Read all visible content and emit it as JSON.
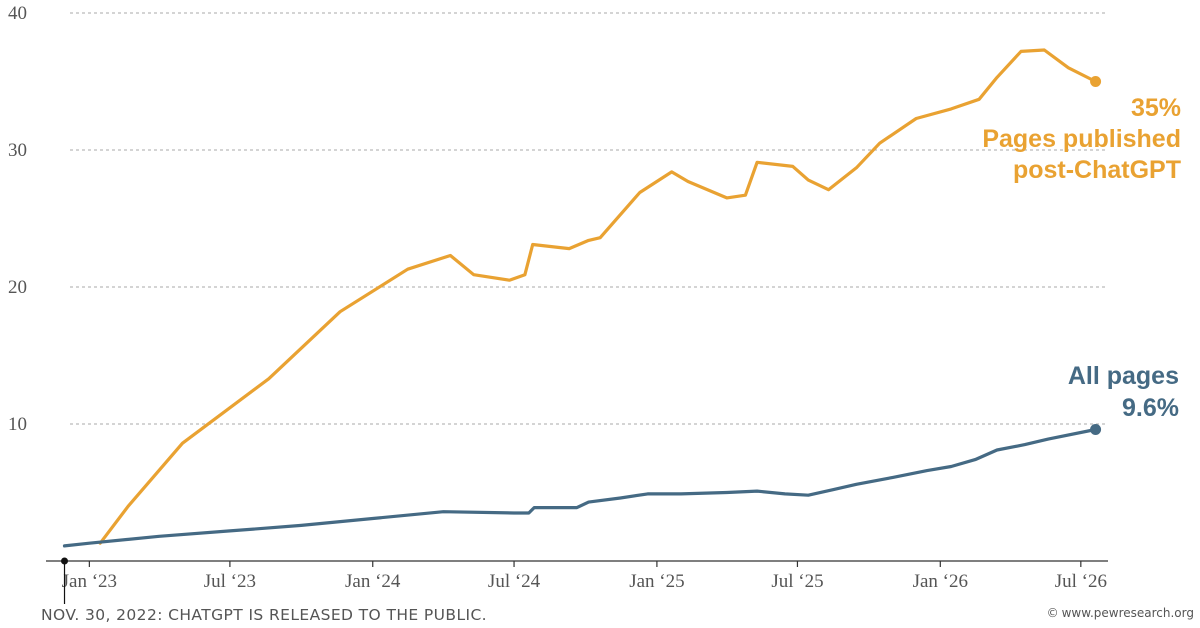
{
  "chart_data": {
    "type": "line",
    "ylim": [
      0,
      40
    ],
    "y_ticks": [
      10,
      20,
      30,
      40
    ],
    "xlim": [
      "2022-11-01",
      "2026-08-05"
    ],
    "x_ticks": [
      {
        "date": "2023-01-01",
        "label": "Jan ‘23"
      },
      {
        "date": "2023-07-01",
        "label": "Jul ‘23"
      },
      {
        "date": "2024-01-01",
        "label": "Jan ‘24"
      },
      {
        "date": "2024-07-01",
        "label": "Jul ‘24"
      },
      {
        "date": "2025-01-01",
        "label": "Jan ‘25"
      },
      {
        "date": "2025-07-01",
        "label": "Jul ‘25"
      },
      {
        "date": "2026-01-01",
        "label": "Jan ‘26"
      },
      {
        "date": "2026-07-01",
        "label": "Jul ‘26"
      }
    ],
    "grid": "horizontal dotted",
    "colors": {
      "orange": "#E9A232",
      "blue": "#456A84",
      "grid": "#bbbbbb",
      "axis": "#333333"
    },
    "series": [
      {
        "name": "Pages published post-ChatGPT",
        "label_lines": [
          "35%",
          "Pages published",
          "post-ChatGPT"
        ],
        "color": "#E9A232",
        "points": [
          [
            "2023-01-15",
            1.3
          ],
          [
            "2023-02-20",
            4.0
          ],
          [
            "2023-05-01",
            8.6
          ],
          [
            "2023-08-20",
            13.3
          ],
          [
            "2023-11-20",
            18.2
          ],
          [
            "2024-02-15",
            21.3
          ],
          [
            "2024-04-10",
            22.3
          ],
          [
            "2024-05-10",
            20.9
          ],
          [
            "2024-06-25",
            20.5
          ],
          [
            "2024-07-15",
            20.9
          ],
          [
            "2024-07-25",
            23.1
          ],
          [
            "2024-09-10",
            22.8
          ],
          [
            "2024-10-05",
            23.4
          ],
          [
            "2024-10-20",
            23.6
          ],
          [
            "2024-12-10",
            26.9
          ],
          [
            "2025-01-20",
            28.4
          ],
          [
            "2025-02-10",
            27.7
          ],
          [
            "2025-04-01",
            26.5
          ],
          [
            "2025-04-25",
            26.7
          ],
          [
            "2025-05-10",
            29.1
          ],
          [
            "2025-06-25",
            28.8
          ],
          [
            "2025-07-15",
            27.8
          ],
          [
            "2025-08-10",
            27.1
          ],
          [
            "2025-09-15",
            28.7
          ],
          [
            "2025-10-15",
            30.5
          ],
          [
            "2025-12-01",
            32.3
          ],
          [
            "2026-01-15",
            33.0
          ],
          [
            "2026-02-20",
            33.7
          ],
          [
            "2026-03-15",
            35.3
          ],
          [
            "2026-04-15",
            37.2
          ],
          [
            "2026-05-15",
            37.3
          ],
          [
            "2026-06-15",
            36.0
          ],
          [
            "2026-07-20",
            35.0
          ]
        ],
        "end_value": 35
      },
      {
        "name": "All pages",
        "label_lines": [
          "All pages",
          "9.6%"
        ],
        "color": "#456A84",
        "points": [
          [
            "2022-11-30",
            1.1
          ],
          [
            "2023-01-01",
            1.3
          ],
          [
            "2023-04-01",
            1.8
          ],
          [
            "2023-07-01",
            2.2
          ],
          [
            "2023-10-01",
            2.6
          ],
          [
            "2024-01-01",
            3.1
          ],
          [
            "2024-04-01",
            3.6
          ],
          [
            "2024-07-01",
            3.5
          ],
          [
            "2024-07-20",
            3.5
          ],
          [
            "2024-07-27",
            3.9
          ],
          [
            "2024-09-20",
            3.9
          ],
          [
            "2024-10-05",
            4.3
          ],
          [
            "2024-11-15",
            4.6
          ],
          [
            "2024-12-20",
            4.9
          ],
          [
            "2025-02-01",
            4.9
          ],
          [
            "2025-04-01",
            5.0
          ],
          [
            "2025-05-10",
            5.1
          ],
          [
            "2025-06-15",
            4.9
          ],
          [
            "2025-07-15",
            4.8
          ],
          [
            "2025-08-15",
            5.2
          ],
          [
            "2025-09-15",
            5.6
          ],
          [
            "2025-11-01",
            6.1
          ],
          [
            "2025-12-15",
            6.6
          ],
          [
            "2026-01-15",
            6.9
          ],
          [
            "2026-02-15",
            7.4
          ],
          [
            "2026-03-15",
            8.1
          ],
          [
            "2026-04-20",
            8.5
          ],
          [
            "2026-05-20",
            8.9
          ],
          [
            "2026-07-20",
            9.6
          ]
        ],
        "end_value": 9.6
      }
    ],
    "annotation": "NOV. 30, 2022: CHATGPT IS RELEASED TO THE PUBLIC.",
    "annotation_date": "2022-11-30"
  },
  "credit": {
    "icon": "copyright-icon",
    "symbol": "©",
    "text": "www.pewresearch.org"
  }
}
